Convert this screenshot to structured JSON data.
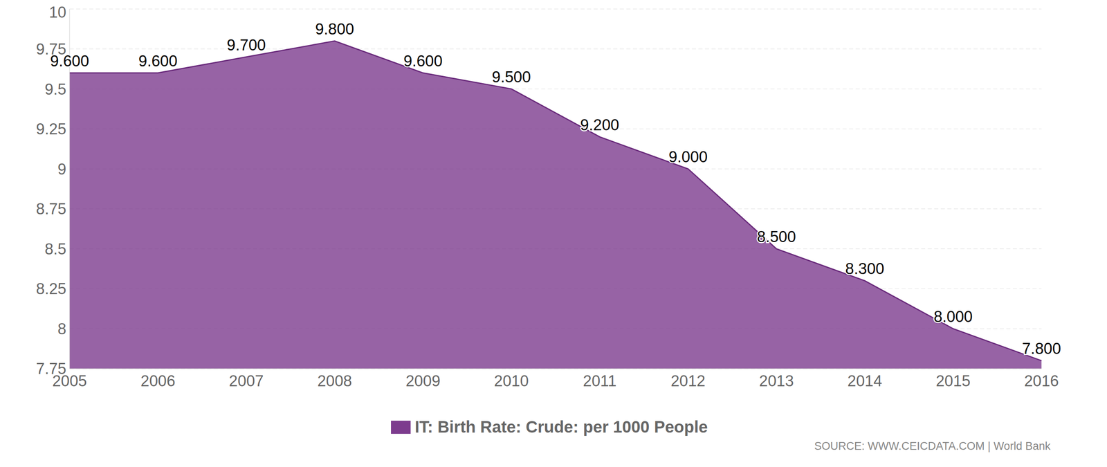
{
  "chart_data": {
    "type": "area",
    "categories": [
      "2005",
      "2006",
      "2007",
      "2008",
      "2009",
      "2010",
      "2011",
      "2012",
      "2013",
      "2014",
      "2015",
      "2016"
    ],
    "series": [
      {
        "name": "IT: Birth Rate: Crude: per 1000 People",
        "color": "#7d3c8e",
        "values": [
          9.6,
          9.6,
          9.7,
          9.8,
          9.6,
          9.5,
          9.2,
          9.0,
          8.5,
          8.3,
          8.0,
          7.8
        ],
        "value_labels": [
          "9.600",
          "9.600",
          "9.700",
          "9.800",
          "9.600",
          "9.500",
          "9.200",
          "9.000",
          "8.500",
          "8.300",
          "8.000",
          "7.800"
        ]
      }
    ],
    "ylim": [
      7.75,
      10
    ],
    "yticks": [
      7.75,
      8,
      8.25,
      8.5,
      8.75,
      9,
      9.25,
      9.5,
      9.75,
      10
    ],
    "grid": true,
    "data_labels": true,
    "legend": "bottom",
    "annotations": [
      "SOURCE: WWW.CEICDATA.COM | World Bank"
    ]
  }
}
